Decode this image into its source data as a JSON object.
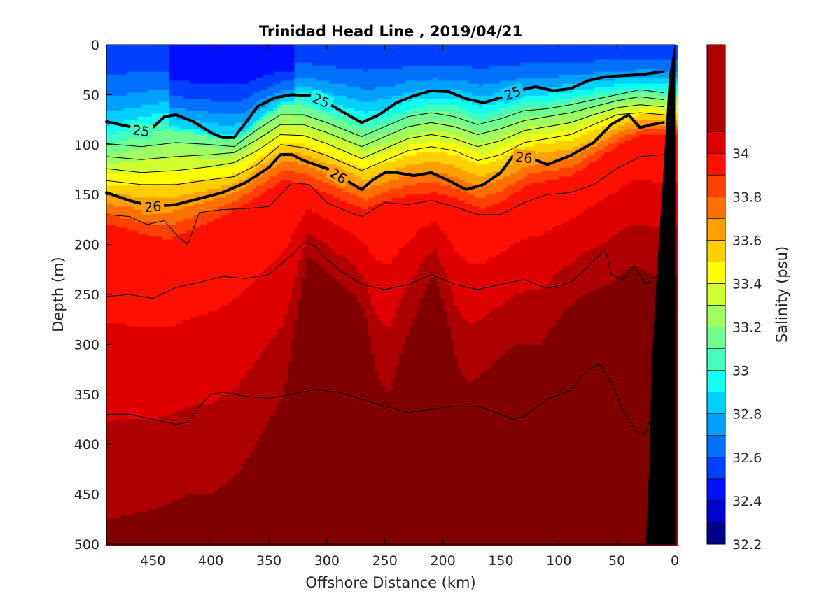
{
  "chart_data": {
    "type": "heatmap",
    "title": "Trinidad Head Line , 2019/04/21",
    "xlabel": "Offshore Distance (km)",
    "ylabel": "Depth (m)",
    "colorbar_label": "Salinity (psu)",
    "xlim": [
      490,
      0
    ],
    "ylim": [
      0,
      500
    ],
    "x_ticks": [
      450,
      400,
      350,
      300,
      250,
      200,
      150,
      100,
      50,
      0
    ],
    "y_ticks": [
      0,
      50,
      100,
      150,
      200,
      250,
      300,
      350,
      400,
      450,
      500
    ],
    "colorbar_range": [
      32.2,
      34.5
    ],
    "colorbar_ticks": [
      32.2,
      32.4,
      32.6,
      32.8,
      33.0,
      33.2,
      33.4,
      33.6,
      33.8,
      34.0
    ],
    "colorbar_tick_labels": [
      "32.2",
      "32.4",
      "32.6",
      "32.8",
      "33",
      "33.2",
      "33.4",
      "33.6",
      "33.8",
      "34"
    ],
    "colorbar_levels": [
      32.2,
      32.3,
      32.4,
      32.5,
      32.6,
      32.7,
      32.8,
      32.9,
      33.0,
      33.1,
      33.2,
      33.3,
      33.4,
      33.5,
      33.6,
      33.7,
      33.8,
      33.9,
      34.0,
      34.1
    ],
    "colormap": [
      "#00008f",
      "#0000cf",
      "#0010ff",
      "#0040ff",
      "#0070ff",
      "#00a0ff",
      "#00d0ff",
      "#10ffef",
      "#40ffbf",
      "#70ff8f",
      "#a0ff60",
      "#d0ff30",
      "#ffff00",
      "#ffcf00",
      "#ff9f00",
      "#ff7000",
      "#ff4000",
      "#ff1000",
      "#df0000",
      "#af0000",
      "#800000"
    ],
    "halocline_depths": {
      "x": [
        490,
        460,
        440,
        420,
        390,
        375,
        360,
        340,
        320,
        300,
        270,
        250,
        230,
        210,
        190,
        170,
        150,
        130,
        110,
        90,
        70,
        50,
        30,
        10
      ],
      "isohaline_33": [
        100,
        90,
        85,
        88,
        95,
        92,
        75,
        60,
        62,
        72,
        85,
        80,
        70,
        66,
        68,
        78,
        70,
        63,
        62,
        58,
        54,
        50,
        48,
        50
      ],
      "isohaline_33_8": [
        180,
        190,
        195,
        185,
        170,
        160,
        150,
        135,
        140,
        150,
        165,
        155,
        150,
        148,
        155,
        165,
        155,
        140,
        135,
        130,
        115,
        100,
        90,
        90
      ]
    },
    "deep_boundary_34_1": {
      "x": [
        490,
        450,
        420,
        400,
        380,
        360,
        340,
        330,
        320,
        300,
        280,
        270,
        260,
        250,
        240,
        230,
        220,
        210,
        200,
        190,
        180,
        170,
        160,
        140,
        120,
        100,
        80,
        60,
        40,
        20
      ],
      "depth": [
        475,
        465,
        450,
        450,
        430,
        390,
        350,
        280,
        210,
        230,
        250,
        270,
        330,
        350,
        310,
        280,
        250,
        230,
        270,
        320,
        340,
        330,
        320,
        300,
        300,
        270,
        250,
        240,
        220,
        230
      ]
    },
    "density_contours": [
      {
        "label": "25",
        "emphasis": "major",
        "x": [
          490,
          470,
          455,
          440,
          430,
          415,
          400,
          390,
          380,
          370,
          360,
          345,
          330,
          315,
          300,
          285,
          270,
          255,
          240,
          225,
          210,
          195,
          180,
          165,
          150,
          135,
          120,
          105,
          90,
          75,
          60,
          45,
          30,
          10
        ],
        "depth": [
          77,
          82,
          88,
          72,
          70,
          77,
          88,
          93,
          93,
          78,
          62,
          53,
          50,
          51,
          58,
          68,
          78,
          70,
          58,
          51,
          46,
          47,
          54,
          58,
          53,
          46,
          42,
          46,
          44,
          36,
          32,
          31,
          30,
          27
        ],
        "labels_at": [
          460,
          305,
          140
        ]
      },
      {
        "label": "26",
        "emphasis": "major",
        "x": [
          490,
          470,
          450,
          430,
          410,
          390,
          370,
          350,
          340,
          330,
          320,
          300,
          280,
          270,
          260,
          250,
          240,
          225,
          210,
          195,
          180,
          165,
          150,
          140,
          125,
          110,
          90,
          70,
          55,
          40,
          30,
          20,
          10
        ],
        "depth": [
          148,
          156,
          162,
          160,
          154,
          148,
          138,
          123,
          110,
          110,
          116,
          124,
          138,
          145,
          135,
          128,
          128,
          131,
          128,
          136,
          145,
          140,
          128,
          112,
          113,
          120,
          111,
          98,
          80,
          70,
          83,
          80,
          78
        ],
        "labels_at": [
          450,
          290,
          130
        ]
      },
      {
        "label": "",
        "emphasis": "minor",
        "x": [
          490,
          460,
          430,
          400,
          380,
          360,
          340,
          320,
          300,
          270,
          250,
          230,
          210,
          190,
          170,
          150,
          130,
          110,
          90,
          70,
          50,
          30,
          10
        ],
        "depth": [
          99,
          102,
          98,
          100,
          102,
          85,
          70,
          70,
          78,
          92,
          82,
          72,
          68,
          72,
          80,
          74,
          66,
          64,
          60,
          55,
          50,
          45,
          48
        ]
      },
      {
        "label": "",
        "emphasis": "minor",
        "x": [
          490,
          460,
          430,
          400,
          380,
          360,
          340,
          320,
          300,
          270,
          250,
          230,
          210,
          190,
          170,
          150,
          130,
          110,
          90,
          70,
          50,
          30,
          10
        ],
        "depth": [
          112,
          115,
          112,
          110,
          108,
          95,
          80,
          80,
          88,
          102,
          92,
          82,
          78,
          82,
          90,
          84,
          76,
          72,
          68,
          62,
          56,
          52,
          55
        ]
      },
      {
        "label": "",
        "emphasis": "minor",
        "x": [
          490,
          460,
          430,
          400,
          380,
          360,
          340,
          320,
          300,
          270,
          250,
          230,
          210,
          190,
          170,
          150,
          130,
          110,
          90,
          70,
          50,
          30,
          10
        ],
        "depth": [
          124,
          128,
          126,
          122,
          118,
          106,
          90,
          91,
          99,
          114,
          104,
          94,
          90,
          94,
          102,
          96,
          86,
          82,
          78,
          70,
          63,
          60,
          62
        ]
      },
      {
        "label": "",
        "emphasis": "minor",
        "x": [
          490,
          460,
          430,
          400,
          380,
          360,
          340,
          320,
          300,
          270,
          250,
          230,
          210,
          190,
          170,
          150,
          130,
          110,
          90,
          70,
          50,
          30,
          10
        ],
        "depth": [
          136,
          140,
          140,
          135,
          132,
          120,
          100,
          103,
          111,
          126,
          116,
          106,
          102,
          106,
          116,
          110,
          98,
          94,
          90,
          80,
          70,
          68,
          70
        ]
      },
      {
        "label": "",
        "emphasis": "minor",
        "x": [
          490,
          470,
          455,
          440,
          430,
          420,
          410,
          390,
          370,
          350,
          330,
          315,
          300,
          280,
          270,
          250,
          230,
          210,
          190,
          170,
          150,
          130,
          110,
          90,
          70,
          50,
          30,
          10
        ],
        "depth": [
          170,
          172,
          180,
          176,
          190,
          200,
          168,
          165,
          164,
          162,
          138,
          140,
          158,
          168,
          172,
          158,
          160,
          156,
          162,
          170,
          170,
          158,
          150,
          148,
          140,
          124,
          112,
          110
        ]
      },
      {
        "label": "",
        "emphasis": "minor",
        "x": [
          490,
          470,
          450,
          430,
          410,
          390,
          370,
          350,
          330,
          320,
          310,
          300,
          290,
          270,
          250,
          230,
          210,
          190,
          170,
          150,
          130,
          110,
          90,
          75,
          60,
          55,
          45,
          35,
          25,
          15
        ],
        "depth": [
          252,
          250,
          254,
          243,
          238,
          232,
          234,
          230,
          210,
          198,
          202,
          215,
          225,
          240,
          245,
          240,
          230,
          240,
          245,
          240,
          235,
          244,
          238,
          222,
          205,
          230,
          235,
          222,
          240,
          230
        ]
      },
      {
        "label": "",
        "emphasis": "minor",
        "x": [
          490,
          470,
          450,
          430,
          420,
          410,
          400,
          390,
          370,
          350,
          330,
          310,
          290,
          270,
          250,
          230,
          210,
          190,
          170,
          150,
          140,
          130,
          110,
          90,
          75,
          65,
          55,
          45,
          35,
          30,
          25,
          20
        ],
        "depth": [
          370,
          370,
          375,
          380,
          378,
          362,
          350,
          348,
          352,
          354,
          350,
          345,
          348,
          355,
          362,
          368,
          365,
          362,
          362,
          370,
          375,
          372,
          355,
          346,
          325,
          320,
          338,
          365,
          385,
          390,
          388,
          370
        ]
      }
    ],
    "coastline_boundary": {
      "x": [
        25,
        22,
        20,
        15,
        10,
        5,
        0
      ],
      "depth": [
        500,
        420,
        320,
        220,
        130,
        30,
        0
      ]
    }
  }
}
